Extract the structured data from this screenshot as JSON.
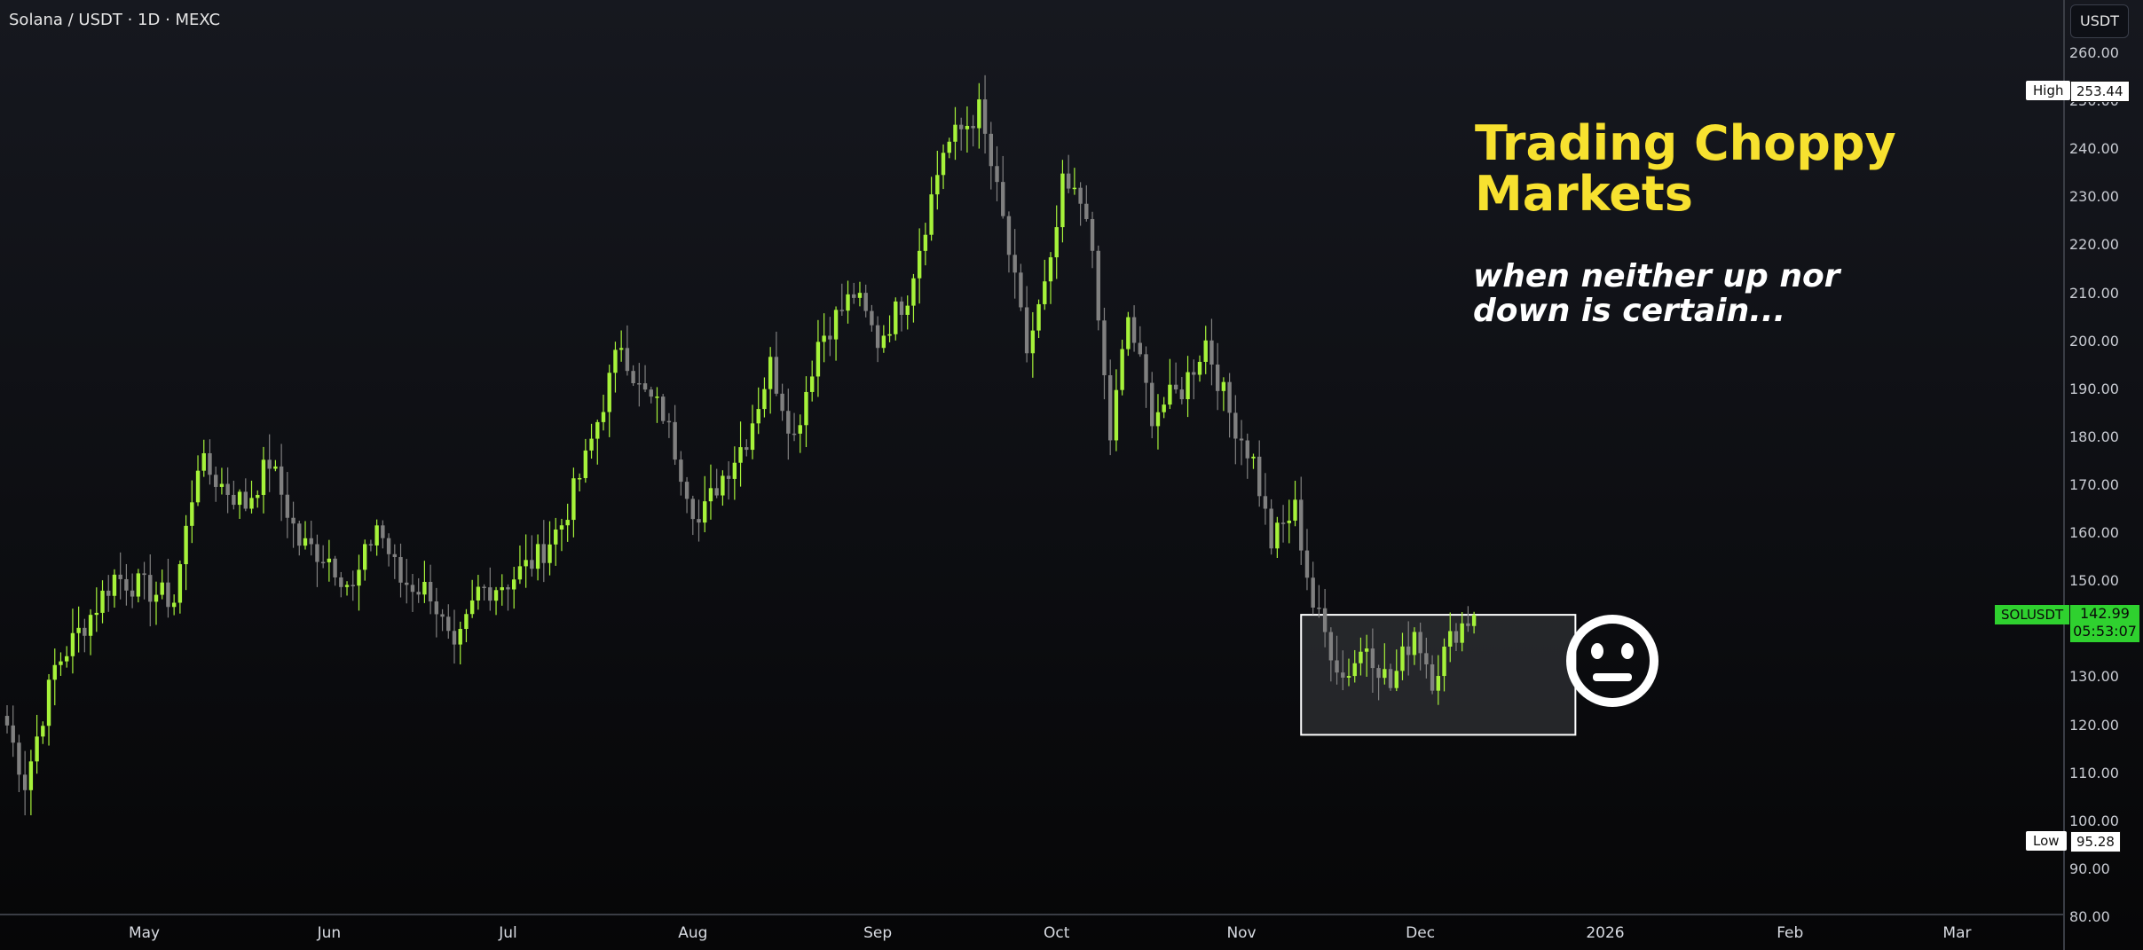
{
  "header": {
    "symbol": "Solana / USDT · 1D · MEXC"
  },
  "currency_badge": "USDT",
  "overlay": {
    "title": "Trading Choppy Markets",
    "subtitle": "when neither up nor down is certain...",
    "emoji": "neutral-face-icon"
  },
  "price_markers": {
    "high_label": "High",
    "high_value": "253.44",
    "low_label": "Low",
    "low_value": "95.28",
    "symbol": "SOLUSDT",
    "last_price": "142.99",
    "countdown": "05:53:07"
  },
  "colors": {
    "bull": "#a6f23a",
    "bear": "#808080",
    "accent": "#f7e12f",
    "last_price": "#2fd12f"
  },
  "chart_data": {
    "type": "candlestick",
    "title": "Solana / USDT · 1D · MEXC",
    "ylim": [
      80,
      265
    ],
    "y_ticks": [
      "260.00",
      "250.00",
      "240.00",
      "230.00",
      "220.00",
      "210.00",
      "200.00",
      "190.00",
      "180.00",
      "170.00",
      "160.00",
      "150.00",
      "140.00",
      "130.00",
      "120.00",
      "110.00",
      "100.00",
      "90.00",
      "80.00"
    ],
    "x_ticks": [
      "May",
      "Jun",
      "Jul",
      "Aug",
      "Sep",
      "Oct",
      "Nov",
      "Dec",
      "2026",
      "Feb",
      "Mar"
    ],
    "x_domain": [
      "2025-04-08",
      "2026-03-31"
    ],
    "series_anchor_closes": [
      [
        "2025-04-08",
        120
      ],
      [
        "2025-04-11",
        108
      ],
      [
        "2025-04-16",
        132
      ],
      [
        "2025-04-22",
        143
      ],
      [
        "2025-04-26",
        151
      ],
      [
        "2025-05-06",
        146
      ],
      [
        "2025-05-10",
        175
      ],
      [
        "2025-05-14",
        170
      ],
      [
        "2025-05-18",
        166
      ],
      [
        "2025-05-22",
        175
      ],
      [
        "2025-05-27",
        158
      ],
      [
        "2025-06-01",
        155
      ],
      [
        "2025-06-05",
        148
      ],
      [
        "2025-06-09",
        162
      ],
      [
        "2025-06-13",
        150
      ],
      [
        "2025-06-18",
        148
      ],
      [
        "2025-06-22",
        134
      ],
      [
        "2025-06-26",
        148
      ],
      [
        "2025-07-01",
        150
      ],
      [
        "2025-07-06",
        155
      ],
      [
        "2025-07-10",
        162
      ],
      [
        "2025-07-14",
        175
      ],
      [
        "2025-07-20",
        200
      ],
      [
        "2025-07-23",
        190
      ],
      [
        "2025-07-27",
        185
      ],
      [
        "2025-08-02",
        162
      ],
      [
        "2025-08-05",
        170
      ],
      [
        "2025-08-10",
        180
      ],
      [
        "2025-08-14",
        195
      ],
      [
        "2025-08-18",
        180
      ],
      [
        "2025-08-22",
        200
      ],
      [
        "2025-08-28",
        210
      ],
      [
        "2025-09-01",
        200
      ],
      [
        "2025-09-06",
        210
      ],
      [
        "2025-09-12",
        240
      ],
      [
        "2025-09-18",
        248
      ],
      [
        "2025-09-22",
        225
      ],
      [
        "2025-09-26",
        198
      ],
      [
        "2025-09-30",
        215
      ],
      [
        "2025-10-02",
        232
      ],
      [
        "2025-10-06",
        228
      ],
      [
        "2025-10-10",
        180
      ],
      [
        "2025-10-13",
        205
      ],
      [
        "2025-10-17",
        185
      ],
      [
        "2025-10-22",
        190
      ],
      [
        "2025-10-26",
        200
      ],
      [
        "2025-10-30",
        185
      ],
      [
        "2025-11-03",
        175
      ],
      [
        "2025-11-06",
        158
      ],
      [
        "2025-11-10",
        165
      ],
      [
        "2025-11-13",
        145
      ],
      [
        "2025-11-18",
        130
      ],
      [
        "2025-11-22",
        137
      ],
      [
        "2025-11-26",
        128
      ],
      [
        "2025-11-30",
        140
      ],
      [
        "2025-12-03",
        130
      ],
      [
        "2025-12-07",
        140
      ],
      [
        "2025-12-10",
        142.99
      ]
    ],
    "range_box": {
      "x_start": "2025-11-11",
      "x_end": "2025-12-27",
      "y_low": 118,
      "y_high": 143
    }
  }
}
